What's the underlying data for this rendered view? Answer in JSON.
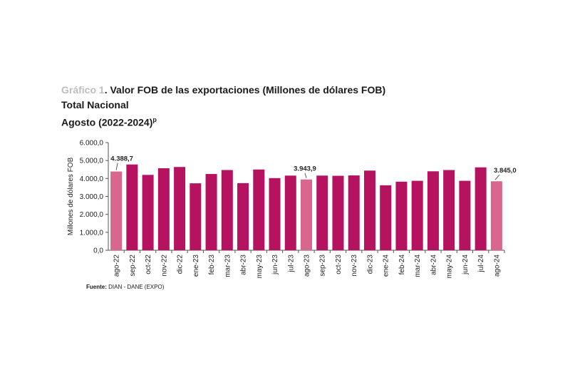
{
  "title": {
    "prefix": "Gráfico 1",
    "main": ". Valor FOB de las exportaciones (Millones de dólares FOB)",
    "line2": "Total Nacional",
    "line3": "Agosto (2022-2024)",
    "line3_sup": "p"
  },
  "source": {
    "label": "Fuente:",
    "value": "DIAN - DANE (EXPO)"
  },
  "colors": {
    "bar": "#b5135f",
    "highlight": "#d8668f",
    "axis": "#555555"
  },
  "chart_data": {
    "type": "bar",
    "title": "Valor FOB de las exportaciones (Millones de dólares FOB)",
    "xlabel": "",
    "ylabel": "Millones de dólares FOB",
    "ylim": [
      0,
      6000
    ],
    "yticks": [
      0,
      1000,
      2000,
      3000,
      4000,
      5000,
      6000
    ],
    "ytick_labels": [
      "0,0",
      "1.000,0",
      "2.000,0",
      "3.000,0",
      "4.000,0",
      "5.000,0",
      "6.000,0"
    ],
    "categories": [
      "ago-22",
      "sep-22",
      "oct-22",
      "nov-22",
      "dic-22",
      "ene-23",
      "feb-23",
      "mar-23",
      "abr-23",
      "may-23",
      "jun-23",
      "jul-23",
      "ago-23",
      "sep-23",
      "oct-23",
      "nov-23",
      "dic-23",
      "ene-24",
      "feb-24",
      "mar-24",
      "abr-24",
      "may-24",
      "jun-24",
      "jul-24",
      "ago-24"
    ],
    "values": [
      4388.7,
      4780,
      4200,
      4570,
      4640,
      3730,
      4250,
      4470,
      3740,
      4500,
      4020,
      4160,
      3943.9,
      4160,
      4150,
      4170,
      4440,
      3620,
      3820,
      3870,
      4400,
      4470,
      3870,
      4620,
      3845.0
    ],
    "highlighted": [
      "ago-22",
      "ago-23",
      "ago-24"
    ],
    "data_labels": [
      {
        "category": "ago-22",
        "text": "4.388,7"
      },
      {
        "category": "ago-23",
        "text": "3.943,9"
      },
      {
        "category": "ago-24",
        "text": "3.845,0"
      }
    ]
  }
}
